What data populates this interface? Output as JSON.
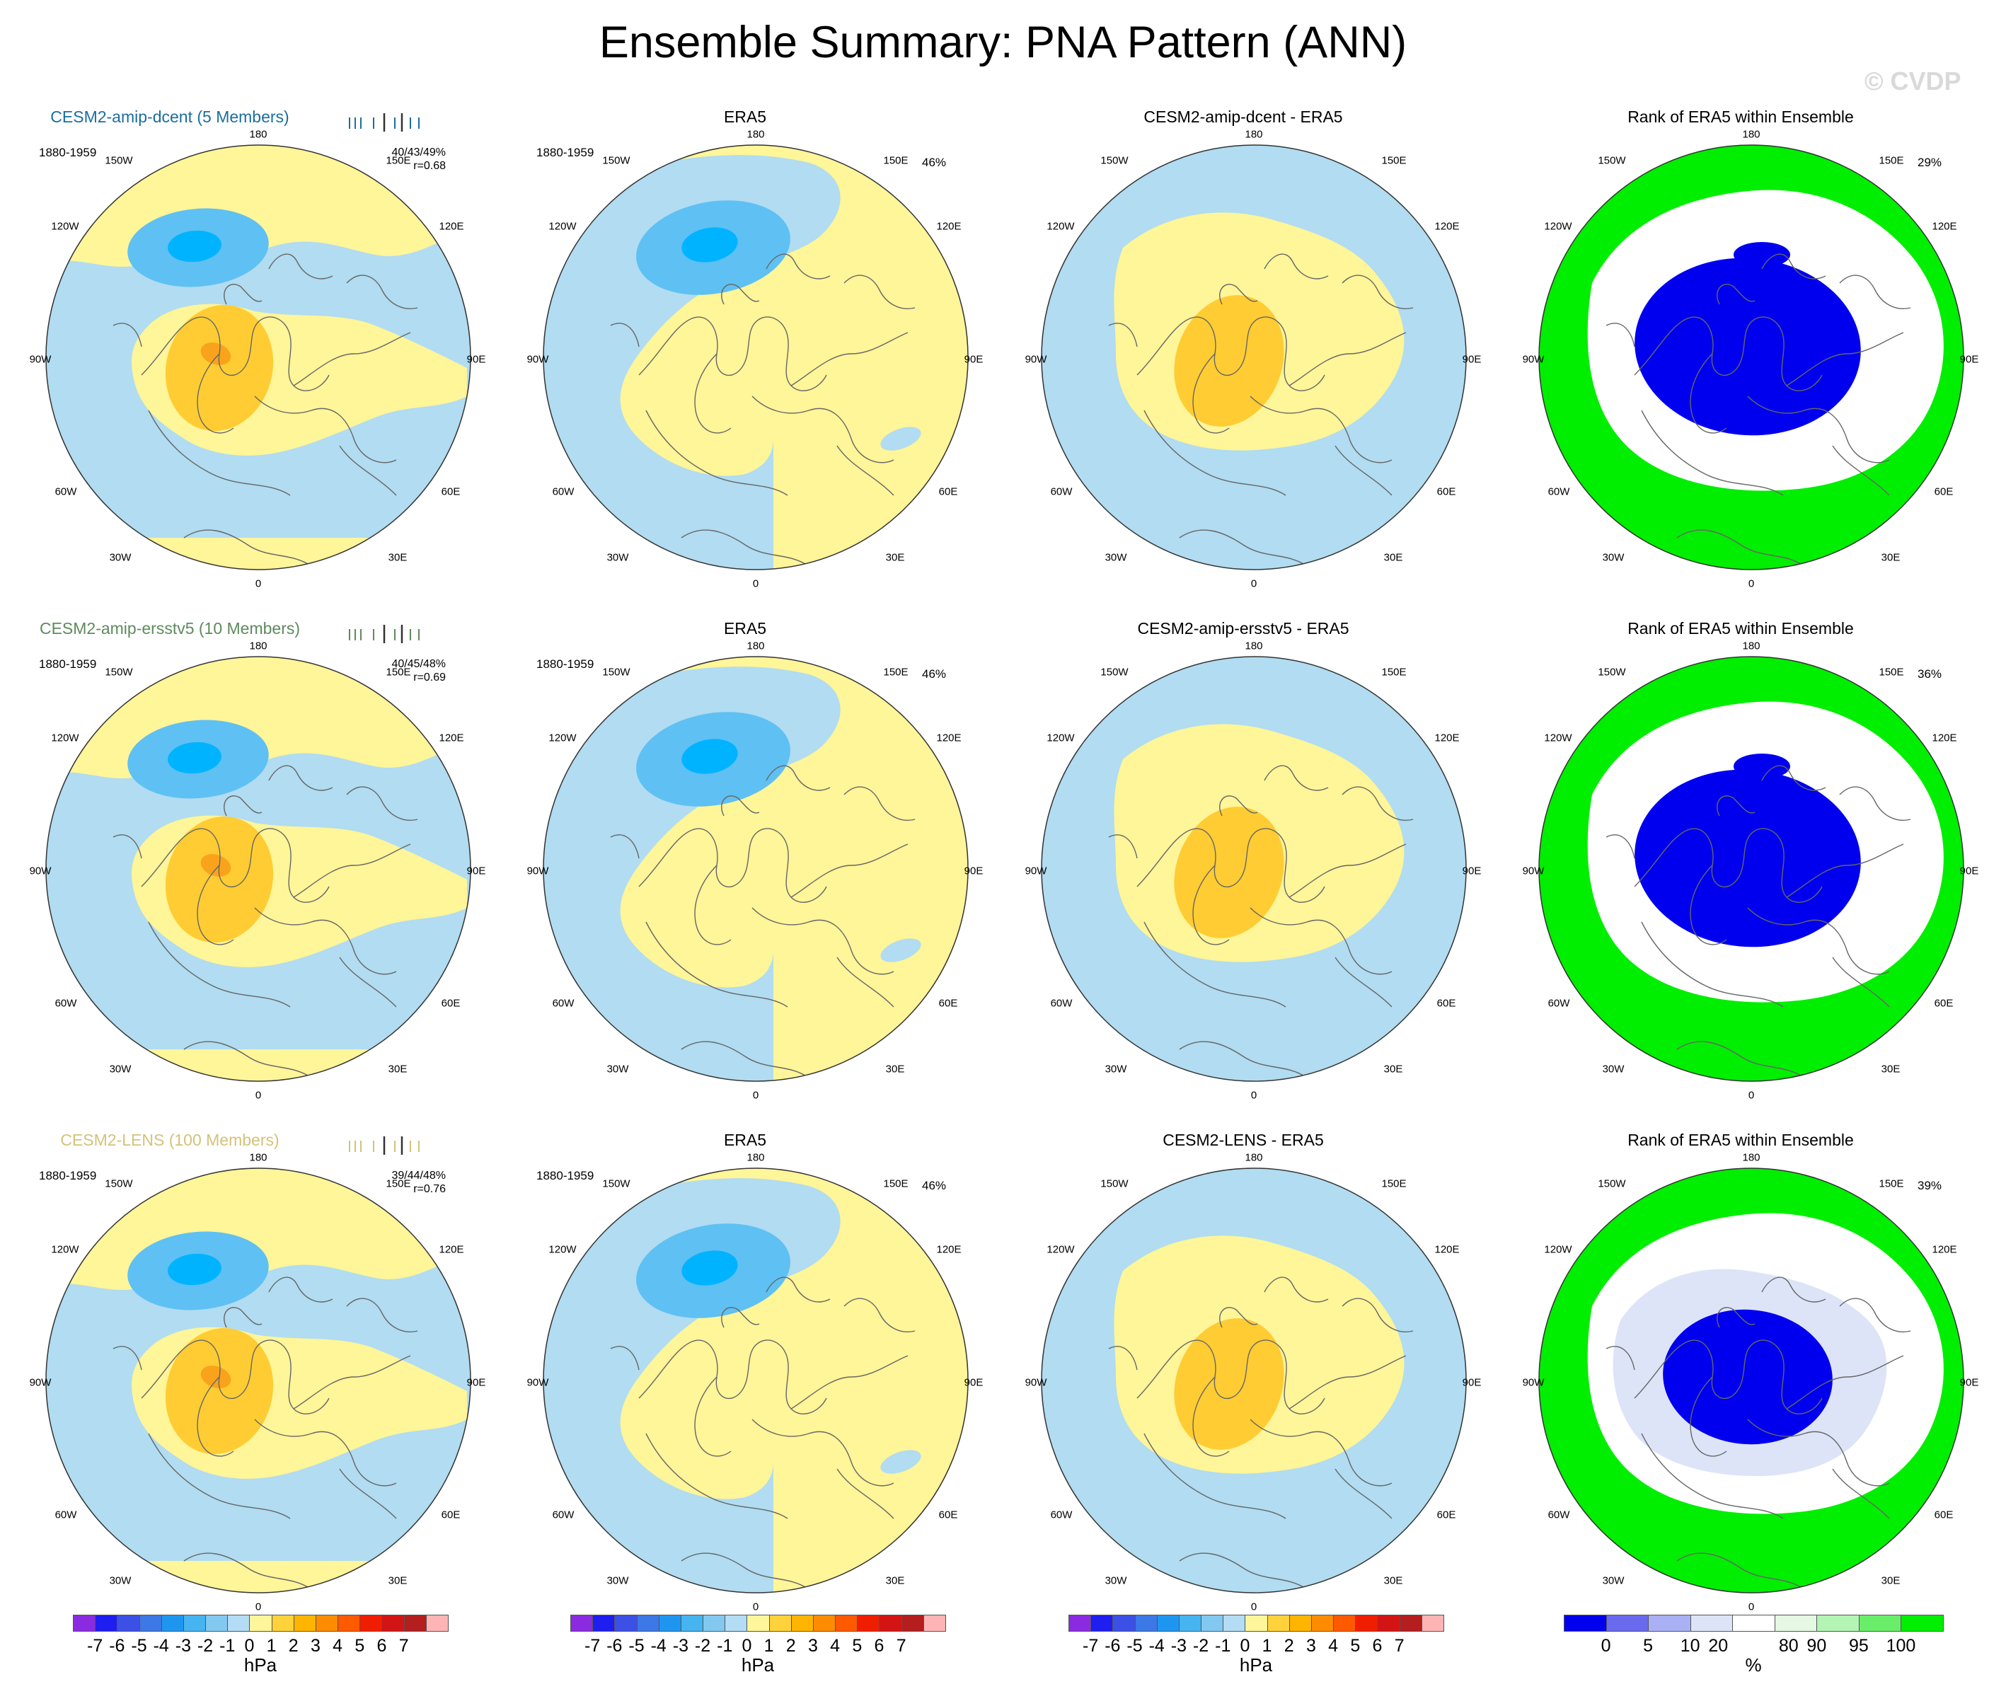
{
  "title": "Ensemble Summary: PNA Pattern (ANN)",
  "watermark": "© CVDP",
  "colors": {
    "blue_weak": "#b1dcf1",
    "blue_mid": "#5fc0f3",
    "blue_strong": "#00b3ff",
    "yellow_weak": "#fff599",
    "orange_mid": "#ffcc33",
    "orange_strong": "#f9a31c",
    "rank_blue": "#0000ee",
    "rank_green": "#00ee00",
    "rank_light": "#dde4f8",
    "white": "#ffffff",
    "model1": "#1a6ea0",
    "model2": "#5e8a5e",
    "model3": "#d4c27a"
  },
  "lon_labels": [
    "180",
    "150E",
    "120E",
    "90E",
    "60E",
    "30E",
    "0",
    "30W",
    "60W",
    "90W",
    "120W",
    "150W"
  ],
  "rows": [
    {
      "model": {
        "title": "CESM2-amip-dcent (5 Members)",
        "period": "1880-1959",
        "pct": "40/43/49%",
        "corr": "r=0.68",
        "color_key": "model1"
      },
      "obs": {
        "title": "ERA5",
        "period": "1880-1959",
        "pct": "46%"
      },
      "diff": {
        "title": "CESM2-amip-dcent - ERA5"
      },
      "rank": {
        "title": "Rank of ERA5 within Ensemble",
        "pct": "29%"
      }
    },
    {
      "model": {
        "title": "CESM2-amip-ersstv5 (10 Members)",
        "period": "1880-1959",
        "pct": "40/45/48%",
        "corr": "r=0.69",
        "color_key": "model2"
      },
      "obs": {
        "title": "ERA5",
        "period": "1880-1959",
        "pct": "46%"
      },
      "diff": {
        "title": "CESM2-amip-ersstv5 - ERA5"
      },
      "rank": {
        "title": "Rank of ERA5 within Ensemble",
        "pct": "36%"
      }
    },
    {
      "model": {
        "title": "CESM2-LENS (100 Members)",
        "period": "1880-1959",
        "pct": "39/44/48%",
        "corr": "r=0.76",
        "color_key": "model3"
      },
      "obs": {
        "title": "ERA5",
        "period": "1880-1959",
        "pct": "46%"
      },
      "diff": {
        "title": "CESM2-LENS - ERA5"
      },
      "rank": {
        "title": "Rank of ERA5 within Ensemble",
        "pct": "39%"
      }
    }
  ],
  "colorbar_hpa": {
    "unit": "hPa",
    "labels": [
      "-7",
      "-6",
      "-5",
      "-4",
      "-3",
      "-2",
      "-1",
      "0",
      "1",
      "2",
      "3",
      "4",
      "5",
      "6",
      "7"
    ],
    "colors": [
      "#8a2be2",
      "#1e1ef0",
      "#3c50e6",
      "#3c78e6",
      "#1e96f0",
      "#46b4f0",
      "#82c8f0",
      "#b4dcf5",
      "#fff59b",
      "#ffd23c",
      "#ffb400",
      "#ff8c00",
      "#ff5a00",
      "#f01e00",
      "#d21414",
      "#b41e1e",
      "#ffb4b4"
    ]
  },
  "colorbar_rank": {
    "unit": "%",
    "labels": [
      "0",
      "5",
      "10",
      "20",
      "80",
      "90",
      "95",
      "100"
    ],
    "colors": [
      "#0000ee",
      "#6a6aee",
      "#aab0f4",
      "#dde4f8",
      "#ffffff",
      "#e4f8e4",
      "#b4f4b4",
      "#6aee6a",
      "#00ee00"
    ]
  }
}
